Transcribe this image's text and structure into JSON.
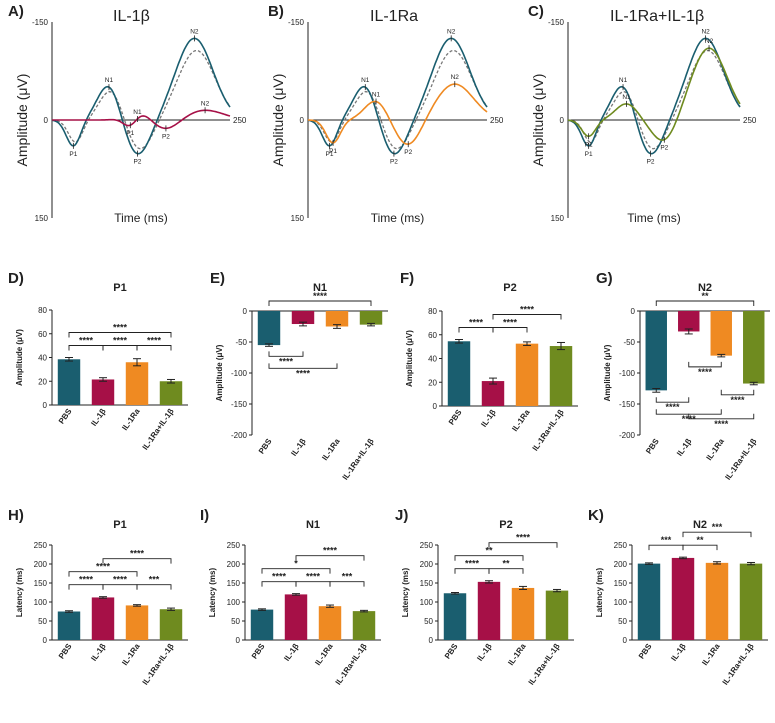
{
  "colors": {
    "PBS": "#1a5e6f",
    "IL-1β": "#a61047",
    "IL-1Ra": "#ef8a22",
    "IL-1Ra+IL-1β": "#6f8b1f",
    "dashed": "#777777"
  },
  "categories": [
    "PBS",
    "IL-1β",
    "IL-1Ra",
    "IL-1Ra+IL-1β"
  ],
  "waveforms": [
    {
      "letter": "A)",
      "title": "IL-1β",
      "ylabel": "Amplitude (μV)",
      "xlabel": "Time (ms)",
      "xlim": [
        0,
        250
      ],
      "ylim_top": -150,
      "ylim_bottom": 150,
      "tick_top": "-150",
      "tick_zero": "0",
      "tick_bottom": "150",
      "tick_xend": "250",
      "treatment": "IL-1β",
      "pbs": {
        "P1": [
          30,
          40
        ],
        "N1": [
          80,
          -55
        ],
        "P2": [
          120,
          55
        ],
        "N2": [
          200,
          -125
        ]
      },
      "treat": {
        "P1": [
          110,
          20
        ],
        "N1": [
          120,
          -15
        ],
        "P2": [
          160,
          15
        ],
        "N2": [
          215,
          -15
        ]
      },
      "labels": [
        "P1",
        "N1",
        "P2",
        "N2",
        "P1",
        "N1",
        "P2",
        "N2"
      ]
    },
    {
      "letter": "B)",
      "title": "IL-1Ra",
      "ylabel": "Amplitude (μV)",
      "xlabel": "Time (ms)",
      "xlim": [
        0,
        250
      ],
      "ylim_top": -150,
      "ylim_bottom": 150,
      "tick_top": "-150",
      "tick_zero": "0",
      "tick_bottom": "150",
      "tick_xend": "250",
      "treatment": "IL-1Ra",
      "pbs": {
        "P1": [
          30,
          40
        ],
        "N1": [
          80,
          -55
        ],
        "P2": [
          120,
          55
        ],
        "N2": [
          200,
          -125
        ]
      },
      "treat": {
        "P1": [
          35,
          35
        ],
        "N1": [
          95,
          -30
        ],
        "P2": [
          140,
          40
        ],
        "N2": [
          205,
          -55
        ]
      },
      "labels": [
        "P1",
        "N1",
        "P2",
        "N2",
        "P1",
        "N1",
        "P2",
        "N2"
      ]
    },
    {
      "letter": "C)",
      "title": "IL-1Ra+IL-1β",
      "ylabel": "Amplitude (μV)",
      "xlabel": "Time (ms)",
      "xlim": [
        0,
        250
      ],
      "ylim_top": -150,
      "ylim_bottom": 150,
      "tick_top": "-150",
      "tick_zero": "0",
      "tick_bottom": "150",
      "tick_xend": "250",
      "treatment": "IL-1Ra+IL-1β",
      "pbs": {
        "P1": [
          30,
          40
        ],
        "N1": [
          80,
          -55
        ],
        "P2": [
          120,
          55
        ],
        "N2": [
          200,
          -125
        ]
      },
      "treat": {
        "P1": [
          30,
          25
        ],
        "N1": [
          85,
          -25
        ],
        "P2": [
          140,
          35
        ],
        "N2": [
          205,
          -110
        ]
      },
      "labels": [
        "P1",
        "N1",
        "P2",
        "N2",
        "P1",
        "N1",
        "P2",
        "N2"
      ]
    }
  ],
  "chart_data": [
    {
      "letter": "D)",
      "type": "bar",
      "title": "P1",
      "ylabel": "Amplitude (μV)",
      "ylim": [
        0,
        80
      ],
      "ticks": [
        0,
        20,
        40,
        60,
        80
      ],
      "invert": false,
      "values": [
        38.5,
        21.5,
        36,
        20
      ],
      "errors": [
        1.5,
        1.5,
        3,
        1.5
      ],
      "brackets": [
        {
          "a": 0,
          "b": 1,
          "level": 0,
          "label": "****"
        },
        {
          "a": 1,
          "b": 2,
          "level": 0,
          "label": "****"
        },
        {
          "a": 2,
          "b": 3,
          "level": 0,
          "label": "****"
        },
        {
          "a": 0,
          "b": 3,
          "level": 1,
          "label": "****"
        }
      ]
    },
    {
      "letter": "E)",
      "type": "bar",
      "title": "N1",
      "ylabel": "Amplitude (μV)",
      "ylim": [
        -200,
        0
      ],
      "ticks": [
        0,
        -50,
        -100,
        -150,
        -200
      ],
      "invert": true,
      "values": [
        -55,
        -21,
        -25,
        -22
      ],
      "errors": [
        2,
        3,
        3,
        2
      ],
      "brackets": [
        {
          "a": 0,
          "b": 3,
          "level": 0,
          "label": "****",
          "side": "top"
        },
        {
          "a": 0,
          "b": 1,
          "level": 0,
          "label": "****",
          "side": "below"
        },
        {
          "a": 0,
          "b": 2,
          "level": 1,
          "label": "****",
          "side": "below"
        }
      ]
    },
    {
      "letter": "F)",
      "type": "bar",
      "title": "P2",
      "ylabel": "Amplitude (μV)",
      "ylim": [
        0,
        80
      ],
      "ticks": [
        0,
        20,
        40,
        60,
        80
      ],
      "invert": false,
      "values": [
        54.5,
        21,
        52.5,
        50.5
      ],
      "errors": [
        1.5,
        2.5,
        1.5,
        3
      ],
      "brackets": [
        {
          "a": 0,
          "b": 1,
          "level": 0,
          "label": "****"
        },
        {
          "a": 1,
          "b": 2,
          "level": 0,
          "label": "****"
        },
        {
          "a": 1,
          "b": 3,
          "level": 1,
          "label": "****"
        }
      ]
    },
    {
      "letter": "G)",
      "type": "bar",
      "title": "N2",
      "ylabel": "Amplitude (μV)",
      "ylim": [
        -200,
        0
      ],
      "ticks": [
        0,
        -50,
        -100,
        -150,
        -200
      ],
      "invert": true,
      "values": [
        -128,
        -33,
        -72,
        -117
      ],
      "errors": [
        3,
        4,
        2,
        2
      ],
      "brackets": [
        {
          "a": 0,
          "b": 3,
          "level": 0,
          "label": "**",
          "side": "top"
        },
        {
          "a": 0,
          "b": 1,
          "level": 0,
          "label": "****",
          "side": "below"
        },
        {
          "a": 1,
          "b": 2,
          "level": 0,
          "label": "****",
          "side": "below"
        },
        {
          "a": 2,
          "b": 3,
          "level": 0,
          "label": "****",
          "side": "below"
        },
        {
          "a": 0,
          "b": 2,
          "level": 1,
          "label": "****",
          "side": "below"
        },
        {
          "a": 1,
          "b": 3,
          "level": 2,
          "label": "****",
          "side": "below"
        }
      ]
    },
    {
      "letter": "H)",
      "type": "bar",
      "title": "P1",
      "ylabel": "Latency (ms)",
      "ylim": [
        0,
        250
      ],
      "ticks": [
        0,
        50,
        100,
        150,
        200,
        250
      ],
      "invert": false,
      "values": [
        75,
        112,
        91,
        81
      ],
      "errors": [
        2,
        2,
        2,
        3
      ],
      "brackets": [
        {
          "a": 0,
          "b": 1,
          "level": 0,
          "label": "****"
        },
        {
          "a": 1,
          "b": 2,
          "level": 0,
          "label": "****"
        },
        {
          "a": 2,
          "b": 3,
          "level": 0,
          "label": "***"
        },
        {
          "a": 0,
          "b": 2,
          "level": 1,
          "label": "****"
        },
        {
          "a": 1,
          "b": 3,
          "level": 2,
          "label": "****"
        }
      ]
    },
    {
      "letter": "I)",
      "type": "bar",
      "title": "N1",
      "ylabel": "Latency (ms)",
      "ylim": [
        0,
        250
      ],
      "ticks": [
        0,
        50,
        100,
        150,
        200,
        250
      ],
      "invert": false,
      "values": [
        80,
        120,
        89,
        76
      ],
      "errors": [
        2,
        2,
        3,
        2
      ],
      "brackets": [
        {
          "a": 0,
          "b": 1,
          "level": 0,
          "label": "****"
        },
        {
          "a": 1,
          "b": 2,
          "level": 0,
          "label": "****"
        },
        {
          "a": 2,
          "b": 3,
          "level": 0,
          "label": "***"
        },
        {
          "a": 0,
          "b": 2,
          "level": 1,
          "label": "*"
        },
        {
          "a": 1,
          "b": 3,
          "level": 2,
          "label": "****"
        }
      ]
    },
    {
      "letter": "J)",
      "type": "bar",
      "title": "P2",
      "ylabel": "Latency (ms)",
      "ylim": [
        0,
        250
      ],
      "ticks": [
        0,
        50,
        100,
        150,
        200,
        250
      ],
      "invert": false,
      "values": [
        123,
        153,
        137,
        130
      ],
      "errors": [
        2,
        3,
        4,
        3
      ],
      "brackets": [
        {
          "a": 0,
          "b": 1,
          "level": 0,
          "label": "****"
        },
        {
          "a": 1,
          "b": 2,
          "level": 0,
          "label": "**"
        },
        {
          "a": 0,
          "b": 2,
          "level": 1,
          "label": "**"
        },
        {
          "a": 1,
          "b": 3,
          "level": 2,
          "label": "****"
        }
      ]
    },
    {
      "letter": "K)",
      "type": "bar",
      "title": "N2",
      "ylabel": "Latency (ms)",
      "ylim": [
        0,
        250
      ],
      "ticks": [
        0,
        50,
        100,
        150,
        200,
        250
      ],
      "invert": false,
      "values": [
        201,
        216,
        203,
        201
      ],
      "errors": [
        2,
        2,
        3,
        3
      ],
      "brackets": [
        {
          "a": 0,
          "b": 1,
          "level": 0,
          "label": "***"
        },
        {
          "a": 1,
          "b": 2,
          "level": 0,
          "label": "**"
        },
        {
          "a": 1,
          "b": 3,
          "level": 1,
          "label": "***"
        }
      ]
    }
  ]
}
